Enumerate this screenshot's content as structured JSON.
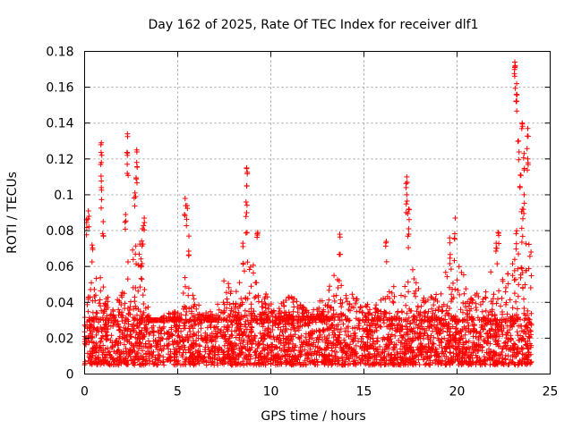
{
  "chart_data": {
    "type": "scatter",
    "title": "Day 162 of 2025, Rate Of TEC Index for receiver dlf1",
    "xlabel": "GPS time / hours",
    "ylabel": "ROTI / TECUs",
    "xlim": [
      0,
      25
    ],
    "ylim": [
      0,
      0.18
    ],
    "x_ticks": [
      "0",
      "5",
      "10",
      "15",
      "20",
      "25"
    ],
    "x_tick_values": [
      0,
      5,
      10,
      15,
      20,
      25
    ],
    "y_ticks": [
      "0",
      "0.02",
      "0.04",
      "0.06",
      "0.08",
      "0.1",
      "0.12",
      "0.14",
      "0.16",
      "0.18"
    ],
    "y_tick_values": [
      0,
      0.02,
      0.04,
      0.06,
      0.08,
      0.1,
      0.12,
      0.14,
      0.16,
      0.18
    ],
    "grid": true,
    "marker": "+",
    "series_color": "#ff0000",
    "x_range_of_data": [
      0,
      24
    ],
    "baseline_band": [
      0.005,
      0.03
    ],
    "peaks": [
      {
        "x": 0.2,
        "y": 0.091
      },
      {
        "x": 0.1,
        "y": 0.086
      },
      {
        "x": 0.4,
        "y": 0.072
      },
      {
        "x": 0.9,
        "y": 0.129
      },
      {
        "x": 0.9,
        "y": 0.118
      },
      {
        "x": 0.9,
        "y": 0.104
      },
      {
        "x": 1.0,
        "y": 0.085
      },
      {
        "x": 2.3,
        "y": 0.134
      },
      {
        "x": 2.3,
        "y": 0.122
      },
      {
        "x": 2.2,
        "y": 0.089
      },
      {
        "x": 2.8,
        "y": 0.125
      },
      {
        "x": 2.8,
        "y": 0.118
      },
      {
        "x": 2.7,
        "y": 0.101
      },
      {
        "x": 3.2,
        "y": 0.087
      },
      {
        "x": 3.1,
        "y": 0.081
      },
      {
        "x": 5.4,
        "y": 0.098
      },
      {
        "x": 5.5,
        "y": 0.094
      },
      {
        "x": 5.6,
        "y": 0.077
      },
      {
        "x": 8.7,
        "y": 0.115
      },
      {
        "x": 8.7,
        "y": 0.105
      },
      {
        "x": 8.7,
        "y": 0.09
      },
      {
        "x": 8.5,
        "y": 0.073
      },
      {
        "x": 9.3,
        "y": 0.079
      },
      {
        "x": 13.7,
        "y": 0.078
      },
      {
        "x": 16.2,
        "y": 0.074
      },
      {
        "x": 17.3,
        "y": 0.11
      },
      {
        "x": 17.3,
        "y": 0.1
      },
      {
        "x": 17.4,
        "y": 0.092
      },
      {
        "x": 17.4,
        "y": 0.081
      },
      {
        "x": 19.9,
        "y": 0.087
      },
      {
        "x": 19.6,
        "y": 0.076
      },
      {
        "x": 22.2,
        "y": 0.079
      },
      {
        "x": 22.1,
        "y": 0.073
      },
      {
        "x": 23.1,
        "y": 0.174
      },
      {
        "x": 23.1,
        "y": 0.171
      },
      {
        "x": 23.2,
        "y": 0.162
      },
      {
        "x": 23.2,
        "y": 0.156
      },
      {
        "x": 23.5,
        "y": 0.14
      },
      {
        "x": 23.3,
        "y": 0.13
      },
      {
        "x": 23.6,
        "y": 0.123
      },
      {
        "x": 23.8,
        "y": 0.137
      },
      {
        "x": 23.8,
        "y": 0.12
      },
      {
        "x": 23.4,
        "y": 0.111
      },
      {
        "x": 23.6,
        "y": 0.1
      },
      {
        "x": 23.5,
        "y": 0.092
      },
      {
        "x": 23.2,
        "y": 0.08
      }
    ],
    "activity_profile": [
      {
        "x": 0.0,
        "y": 0.055
      },
      {
        "x": 0.5,
        "y": 0.065
      },
      {
        "x": 1.0,
        "y": 0.05
      },
      {
        "x": 1.5,
        "y": 0.04
      },
      {
        "x": 2.0,
        "y": 0.045
      },
      {
        "x": 2.5,
        "y": 0.075
      },
      {
        "x": 3.0,
        "y": 0.075
      },
      {
        "x": 3.5,
        "y": 0.03
      },
      {
        "x": 4.0,
        "y": 0.03
      },
      {
        "x": 4.5,
        "y": 0.035
      },
      {
        "x": 5.0,
        "y": 0.035
      },
      {
        "x": 5.5,
        "y": 0.06
      },
      {
        "x": 6.0,
        "y": 0.04
      },
      {
        "x": 6.5,
        "y": 0.035
      },
      {
        "x": 7.0,
        "y": 0.035
      },
      {
        "x": 7.5,
        "y": 0.055
      },
      {
        "x": 8.0,
        "y": 0.045
      },
      {
        "x": 8.5,
        "y": 0.06
      },
      {
        "x": 9.0,
        "y": 0.065
      },
      {
        "x": 9.5,
        "y": 0.05
      },
      {
        "x": 10.0,
        "y": 0.04
      },
      {
        "x": 10.5,
        "y": 0.04
      },
      {
        "x": 11.0,
        "y": 0.045
      },
      {
        "x": 11.5,
        "y": 0.04
      },
      {
        "x": 12.0,
        "y": 0.035
      },
      {
        "x": 12.5,
        "y": 0.04
      },
      {
        "x": 13.0,
        "y": 0.045
      },
      {
        "x": 13.5,
        "y": 0.06
      },
      {
        "x": 14.0,
        "y": 0.05
      },
      {
        "x": 14.5,
        "y": 0.045
      },
      {
        "x": 15.0,
        "y": 0.04
      },
      {
        "x": 15.5,
        "y": 0.04
      },
      {
        "x": 16.0,
        "y": 0.045
      },
      {
        "x": 16.5,
        "y": 0.05
      },
      {
        "x": 17.0,
        "y": 0.06
      },
      {
        "x": 17.5,
        "y": 0.065
      },
      {
        "x": 18.0,
        "y": 0.045
      },
      {
        "x": 18.5,
        "y": 0.045
      },
      {
        "x": 19.0,
        "y": 0.05
      },
      {
        "x": 19.5,
        "y": 0.065
      },
      {
        "x": 20.0,
        "y": 0.07
      },
      {
        "x": 20.5,
        "y": 0.05
      },
      {
        "x": 21.0,
        "y": 0.045
      },
      {
        "x": 21.5,
        "y": 0.05
      },
      {
        "x": 22.0,
        "y": 0.065
      },
      {
        "x": 22.5,
        "y": 0.055
      },
      {
        "x": 23.0,
        "y": 0.07
      },
      {
        "x": 23.5,
        "y": 0.08
      },
      {
        "x": 24.0,
        "y": 0.07
      }
    ]
  }
}
